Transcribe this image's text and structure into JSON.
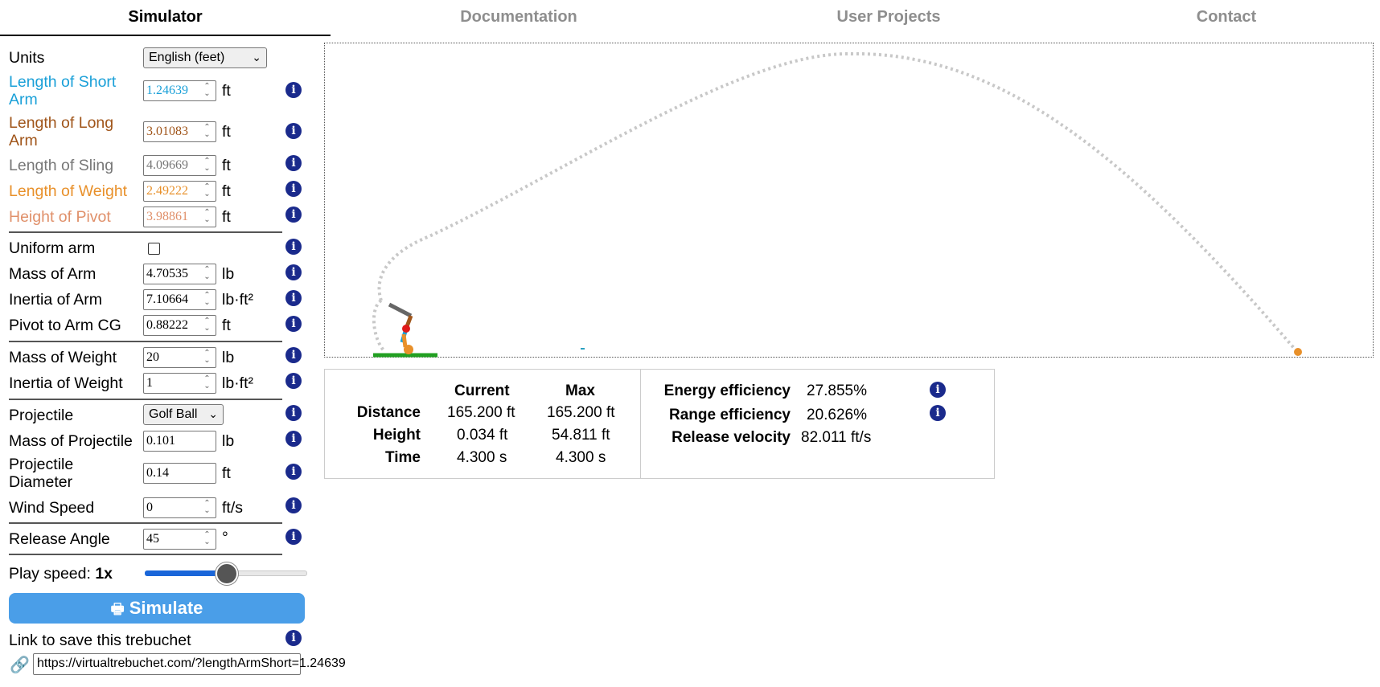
{
  "tabs": [
    "Simulator",
    "Documentation",
    "User Projects",
    "Contact"
  ],
  "form": {
    "units": {
      "label": "Units",
      "value": "English (feet)"
    },
    "short_arm": {
      "label_line1": "Length of Short",
      "label_line2": "Arm",
      "value": "1.24639",
      "unit": "ft",
      "color": "#1aa0d8"
    },
    "long_arm": {
      "label_line1": "Length of Long",
      "label_line2": "Arm",
      "value": "3.01083",
      "unit": "ft",
      "color": "#a0551a"
    },
    "sling": {
      "label": "Length of Sling",
      "value": "4.09669",
      "unit": "ft",
      "color": "#777777"
    },
    "weight_len": {
      "label": "Length of Weight",
      "value": "2.49222",
      "unit": "ft",
      "color": "#e8902a"
    },
    "pivot_h": {
      "label": "Height of Pivot",
      "value": "3.98861",
      "unit": "ft",
      "color": "#e0906a"
    },
    "uniform_arm": {
      "label": "Uniform arm",
      "checked": false
    },
    "mass_arm": {
      "label": "Mass of Arm",
      "value": "4.70535",
      "unit": "lb"
    },
    "inertia_arm": {
      "label": "Inertia of Arm",
      "value": "7.10664",
      "unit": "lb·ft²"
    },
    "pivot_cg": {
      "label": "Pivot to Arm CG",
      "value": "0.88222",
      "unit": "ft"
    },
    "mass_weight": {
      "label": "Mass of Weight",
      "value": "20",
      "unit": "lb"
    },
    "inertia_weight": {
      "label": "Inertia of Weight",
      "value": "1",
      "unit": "lb·ft²"
    },
    "projectile": {
      "label": "Projectile",
      "value": "Golf Ball"
    },
    "mass_proj": {
      "label": "Mass of Projectile",
      "value": "0.101",
      "unit": "lb"
    },
    "proj_diam": {
      "label_line1": "Projectile",
      "label_line2": "Diameter",
      "value": "0.14",
      "unit": "ft"
    },
    "wind": {
      "label": "Wind Speed",
      "value": "0",
      "unit": "ft/s"
    },
    "release_angle": {
      "label": "Release Angle",
      "value": "45",
      "unit": "°"
    },
    "play_speed": {
      "label": "Play speed:",
      "value": "1x",
      "fraction": 0.5
    },
    "simulate_label": "Simulate",
    "link_label": "Link to save this trebuchet",
    "link_url": "https://virtualtrebuchet.com/?lengthArmShort=1.24639"
  },
  "results": {
    "col_current": "Current",
    "col_max": "Max",
    "rows": [
      {
        "label": "Distance",
        "current": "165.200 ft",
        "max": "165.200 ft"
      },
      {
        "label": "Height",
        "current": "0.034 ft",
        "max": "54.811 ft"
      },
      {
        "label": "Time",
        "current": "4.300 s",
        "max": "4.300 s"
      }
    ],
    "efficiency": [
      {
        "label": "Energy efficiency",
        "value": "27.855%"
      },
      {
        "label": "Range efficiency",
        "value": "20.626%"
      },
      {
        "label": "Release velocity",
        "value": "82.011 ft/s"
      }
    ]
  },
  "colors": {
    "accent": "#4a9ee8",
    "info": "#1a2a8c",
    "ground": "#22a022",
    "projectile": "#e8902a",
    "trajectory": "#c8c8c8"
  }
}
